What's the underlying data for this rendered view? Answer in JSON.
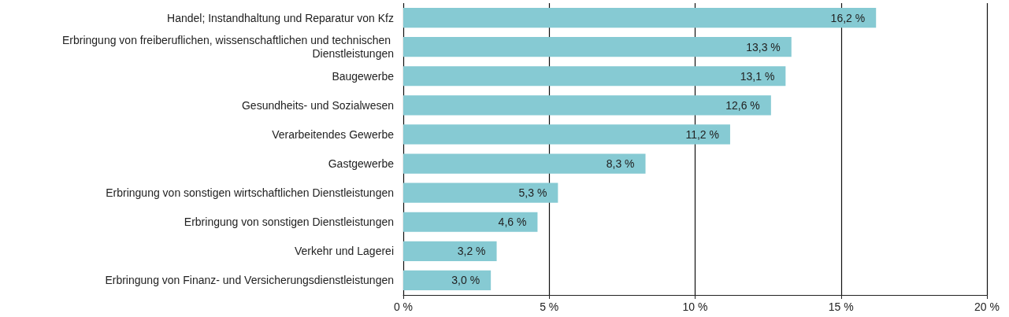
{
  "chart_data": {
    "type": "bar",
    "orientation": "horizontal",
    "categories": [
      "Handel; Instandhaltung und Reparatur von Kfz",
      "Erbringung von freiberuflichen, wissenschaftlichen und technischen Dienstleistungen",
      "Baugewerbe",
      "Gesundheits- und Sozialwesen",
      "Verarbeitendes Gewerbe",
      "Gastgewerbe",
      "Erbringung von sonstigen wirtschaftlichen Dienstleistungen",
      "Erbringung von sonstigen Dienstleistungen",
      "Verkehr und Lagerei",
      "Erbringung von Finanz- und Versicherungsdienstleistungen"
    ],
    "values": [
      16.2,
      13.3,
      13.1,
      12.6,
      11.2,
      8.3,
      5.3,
      4.6,
      3.2,
      3.0
    ],
    "value_labels": [
      "16,2 %",
      "13,3 %",
      "13,1 %",
      "12,6 %",
      "11,2 %",
      "8,3 %",
      "5,3 %",
      "4,6 %",
      "3,2 %",
      "3,0 %"
    ],
    "color": "#86cad3",
    "xlim": [
      0,
      20
    ],
    "xticks": [
      {
        "value": 0,
        "label": "0 %"
      },
      {
        "value": 5,
        "label": "5 %"
      },
      {
        "value": 10,
        "label": "10 %"
      },
      {
        "value": 15,
        "label": "15 %"
      },
      {
        "value": 20,
        "label": "20 %"
      }
    ],
    "grid": "x"
  }
}
